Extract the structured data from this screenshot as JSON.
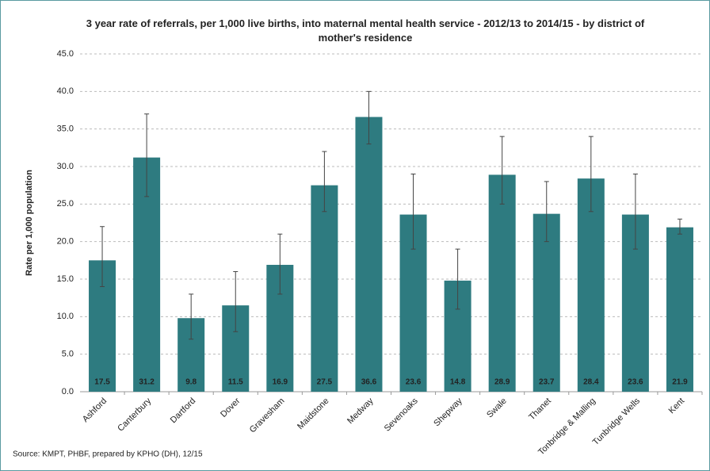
{
  "chart_data": {
    "type": "bar",
    "title": "3 year rate of referrals, per 1,000 live births, into maternal mental health service - 2012/13 to 2014/15 - by district of mother's residence",
    "y_label": "Rate per 1,000 population",
    "source": "Source: KMPT, PHBF, prepared by KPHO (DH), 12/15",
    "categories": [
      "Ashford",
      "Canterbury",
      "Dartford",
      "Dover",
      "Gravesham",
      "Maidstone",
      "Medway",
      "Sevenoaks",
      "Shepway",
      "Swale",
      "Thanet",
      "Tonbridge & Malling",
      "Tunbridge Wells",
      "Kent"
    ],
    "values": [
      17.5,
      31.2,
      9.8,
      11.5,
      16.9,
      27.5,
      36.6,
      23.6,
      14.8,
      28.9,
      23.7,
      28.4,
      23.6,
      21.9
    ],
    "error_low": [
      14,
      26,
      7,
      8,
      13,
      24,
      33,
      19,
      11,
      25,
      20,
      24,
      19,
      21
    ],
    "error_high": [
      22,
      37,
      13,
      16,
      21,
      32,
      40,
      29,
      19,
      34,
      28,
      34,
      29,
      23
    ],
    "color": "#2e7b80",
    "ylim": [
      0,
      45
    ],
    "yticks": [
      {
        "value": 0,
        "label": "0.0"
      },
      {
        "value": 5,
        "label": "5.0"
      },
      {
        "value": 10,
        "label": "10.0"
      },
      {
        "value": 15,
        "label": "15.0"
      },
      {
        "value": 20,
        "label": "20.0"
      },
      {
        "value": 25,
        "label": "25.0"
      },
      {
        "value": 30,
        "label": "30.0"
      },
      {
        "value": 35,
        "label": "35.0"
      },
      {
        "value": 40,
        "label": "40.0"
      },
      {
        "value": 45,
        "label": "45.0"
      }
    ],
    "grid": true
  }
}
